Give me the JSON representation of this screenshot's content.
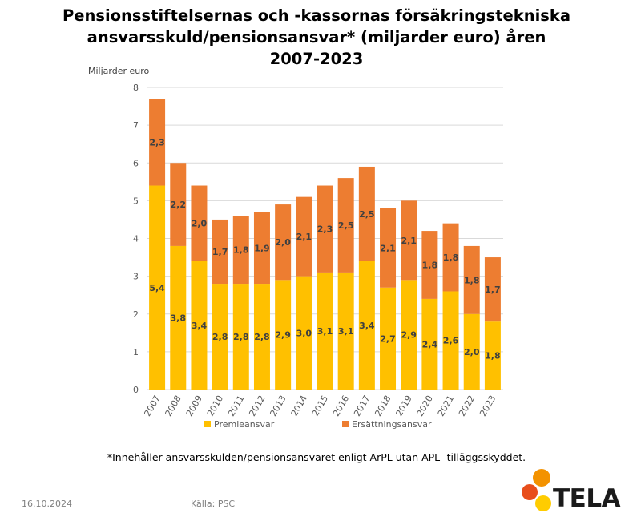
{
  "title_lines": [
    "Pensionsstiftelsernas och -kassornas försäkringstekniska",
    "ansvarsskuld/pensionsansvar* (miljarder euro) åren",
    "2007-2023"
  ],
  "footnote": "*Innehåller ansvarsskulden/pensionsansvaret enligt ArPL utan APL -tilläggsskyddet.",
  "date": "16.10.2024",
  "source": "Källa: PSC",
  "logo_text": "TELA",
  "colors": {
    "premie": "#FFC000",
    "ersattning": "#ED7D31",
    "grid": "#d9d9d9",
    "label": "#404040",
    "axis_text": "#595959",
    "logo_red": "#E84E1B",
    "logo_orange": "#F39200",
    "logo_yellow": "#FFCC00"
  },
  "chart_data": {
    "type": "bar",
    "stacked": true,
    "ylabel": "Miljarder euro",
    "ylim": [
      0,
      8
    ],
    "yticks": [
      "0",
      "1",
      "2",
      "3",
      "4",
      "5",
      "6",
      "7",
      "8"
    ],
    "grid": true,
    "legend_position": "bottom",
    "categories": [
      "2007",
      "2008",
      "2009",
      "2010",
      "2011",
      "2012",
      "2013",
      "2014",
      "2015",
      "2016",
      "2017",
      "2018",
      "2019",
      "2020",
      "2021",
      "2022",
      "2023"
    ],
    "series": [
      {
        "name": "Premieansvar",
        "values": [
          5.4,
          3.8,
          3.4,
          2.8,
          2.8,
          2.8,
          2.9,
          3.0,
          3.1,
          3.1,
          3.4,
          2.7,
          2.9,
          2.4,
          2.6,
          2.0,
          1.8
        ],
        "labels": [
          "5,4",
          "3,8",
          "3,4",
          "2,8",
          "2,8",
          "2,8",
          "2,9",
          "3,0",
          "3,1",
          "3,1",
          "3,4",
          "2,7",
          "2,9",
          "2,4",
          "2,6",
          "2,0",
          "1,8"
        ]
      },
      {
        "name": "Ersättningsansvar",
        "values": [
          2.3,
          2.2,
          2.0,
          1.7,
          1.8,
          1.9,
          2.0,
          2.1,
          2.3,
          2.5,
          2.5,
          2.1,
          2.1,
          1.8,
          1.8,
          1.8,
          1.7
        ],
        "labels": [
          "2,3",
          "2,2",
          "2,0",
          "1,7",
          "1,8",
          "1,9",
          "2,0",
          "2,1",
          "2,3",
          "2,5",
          "2,5",
          "2,1",
          "2,1",
          "1,8",
          "1,8",
          "1,8",
          "1,7"
        ]
      }
    ]
  }
}
